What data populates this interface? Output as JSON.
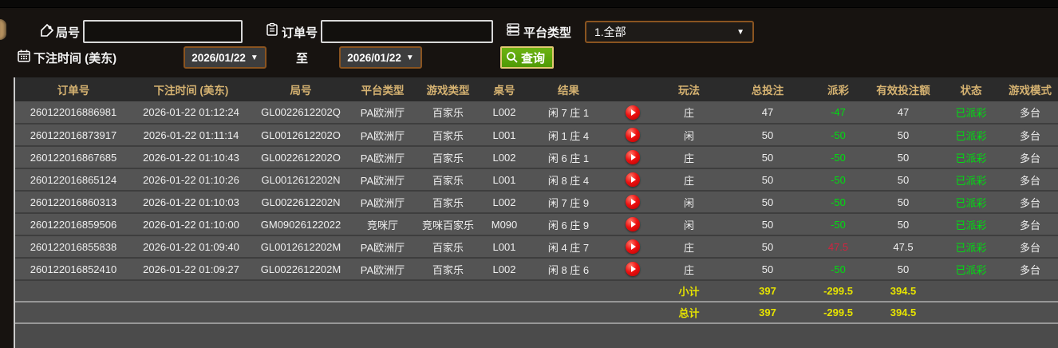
{
  "accent_colors": {
    "header_gold": "#d5b271",
    "win_red": "#cf2440",
    "loss_green": "#00dd11",
    "total_yellow": "#e6e300",
    "button_green": "#5aa40a"
  },
  "filters": {
    "round_label": "局号",
    "round_value": "",
    "order_label": "订单号",
    "order_value": "",
    "platform_label": "平台类型",
    "platform_value": "1.全部",
    "time_label": "下注时间 (美东)",
    "date_from": "2026/01/22",
    "to_label": "至",
    "date_to": "2026/01/22",
    "search_label": "查询"
  },
  "table": {
    "headers": [
      "订单号",
      "下注时间 (美东)",
      "局号",
      "平台类型",
      "游戏类型",
      "桌号",
      "结果",
      "玩法",
      "总投注",
      "派彩",
      "有效投注额",
      "状态",
      "游戏模式"
    ],
    "rows": [
      {
        "order": "260122016886981",
        "time": "2026-01-22 01:12:24",
        "round": "GL0022612202Q",
        "platform": "PA欧洲厅",
        "game": "百家乐",
        "table_no": "L002",
        "result": "闲 7 庄 1",
        "play": "庄",
        "total": "47",
        "payout": "-47",
        "valid": "47",
        "status": "已派彩",
        "mode": "多台"
      },
      {
        "order": "260122016873917",
        "time": "2026-01-22 01:11:14",
        "round": "GL0012612202O",
        "platform": "PA欧洲厅",
        "game": "百家乐",
        "table_no": "L001",
        "result": "闲 1 庄 4",
        "play": "闲",
        "total": "50",
        "payout": "-50",
        "valid": "50",
        "status": "已派彩",
        "mode": "多台"
      },
      {
        "order": "260122016867685",
        "time": "2026-01-22 01:10:43",
        "round": "GL0022612202O",
        "platform": "PA欧洲厅",
        "game": "百家乐",
        "table_no": "L002",
        "result": "闲 6 庄 1",
        "play": "庄",
        "total": "50",
        "payout": "-50",
        "valid": "50",
        "status": "已派彩",
        "mode": "多台"
      },
      {
        "order": "260122016865124",
        "time": "2026-01-22 01:10:26",
        "round": "GL0012612202N",
        "platform": "PA欧洲厅",
        "game": "百家乐",
        "table_no": "L001",
        "result": "闲 8 庄 4",
        "play": "庄",
        "total": "50",
        "payout": "-50",
        "valid": "50",
        "status": "已派彩",
        "mode": "多台"
      },
      {
        "order": "260122016860313",
        "time": "2026-01-22 01:10:03",
        "round": "GL0022612202N",
        "platform": "PA欧洲厅",
        "game": "百家乐",
        "table_no": "L002",
        "result": "闲 7 庄 9",
        "play": "闲",
        "total": "50",
        "payout": "-50",
        "valid": "50",
        "status": "已派彩",
        "mode": "多台"
      },
      {
        "order": "260122016859506",
        "time": "2026-01-22 01:10:00",
        "round": "GM09026122022",
        "platform": "竞咪厅",
        "game": "竞咪百家乐",
        "table_no": "M090",
        "result": "闲 6 庄 9",
        "play": "闲",
        "total": "50",
        "payout": "-50",
        "valid": "50",
        "status": "已派彩",
        "mode": "多台"
      },
      {
        "order": "260122016855838",
        "time": "2026-01-22 01:09:40",
        "round": "GL0012612202M",
        "platform": "PA欧洲厅",
        "game": "百家乐",
        "table_no": "L001",
        "result": "闲 4 庄 7",
        "play": "庄",
        "total": "50",
        "payout": "47.5",
        "valid": "47.5",
        "status": "已派彩",
        "mode": "多台"
      },
      {
        "order": "260122016852410",
        "time": "2026-01-22 01:09:27",
        "round": "GL0022612202M",
        "platform": "PA欧洲厅",
        "game": "百家乐",
        "table_no": "L002",
        "result": "闲 8 庄 6",
        "play": "庄",
        "total": "50",
        "payout": "-50",
        "valid": "50",
        "status": "已派彩",
        "mode": "多台"
      }
    ],
    "subtotal": {
      "label": "小计",
      "total": "397",
      "payout": "-299.5",
      "valid": "394.5"
    },
    "grand_total": {
      "label": "总计",
      "total": "397",
      "payout": "-299.5",
      "valid": "394.5"
    }
  }
}
